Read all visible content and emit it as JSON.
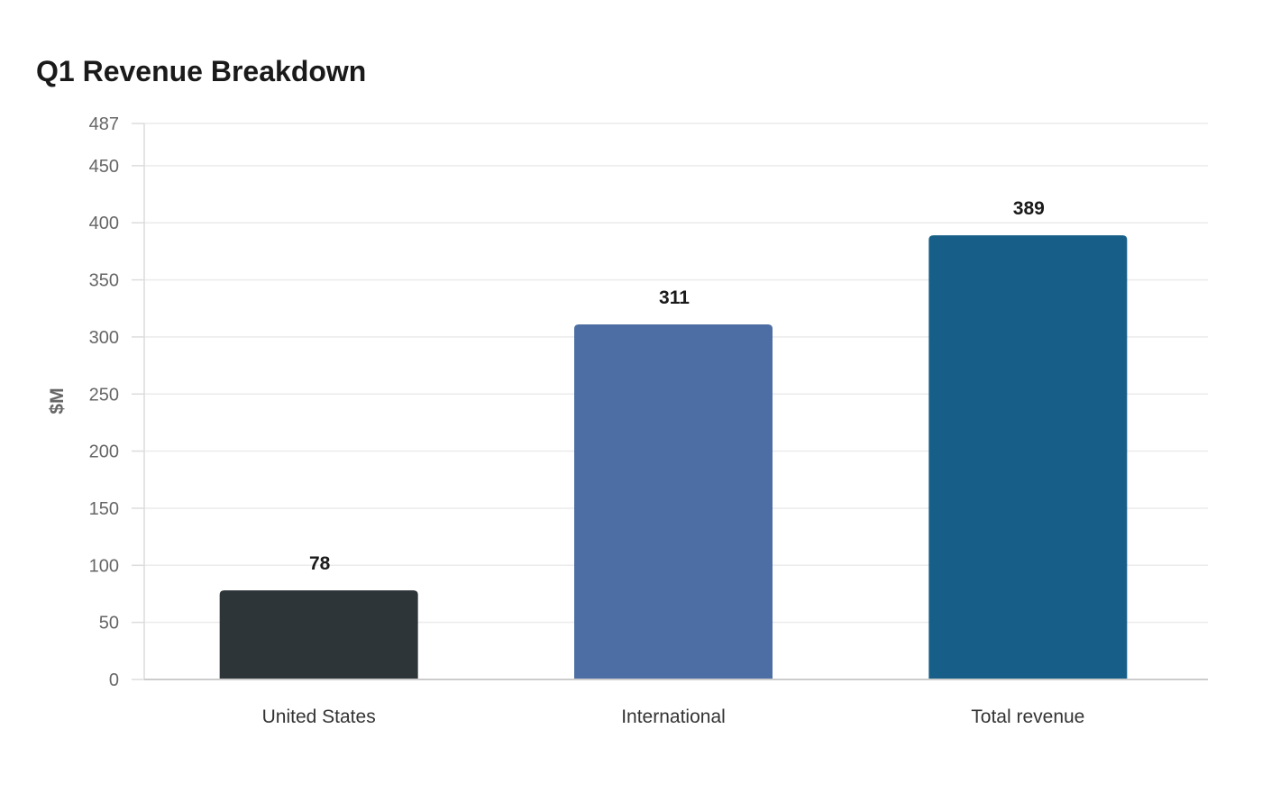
{
  "chart_data": {
    "type": "bar",
    "title": "Q1 Revenue Breakdown",
    "xlabel": "",
    "ylabel": "$M",
    "categories": [
      "United States",
      "International",
      "Total revenue"
    ],
    "values": [
      78,
      311,
      389
    ],
    "ylim": [
      0,
      487
    ],
    "yticks": [
      0,
      50,
      100,
      150,
      200,
      250,
      300,
      350,
      400,
      450,
      487
    ],
    "colors": [
      "#2e3538",
      "#4c6ea4",
      "#175f88"
    ],
    "grid": true,
    "legend": "none"
  }
}
